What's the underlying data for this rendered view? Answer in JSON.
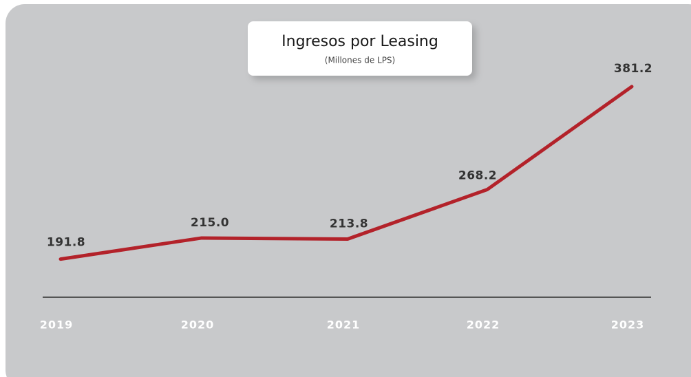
{
  "chart_data": {
    "type": "line",
    "title": "Ingresos por Leasing",
    "subtitle": "(Millones de LPS)",
    "categories": [
      "2019",
      "2020",
      "2021",
      "2022",
      "2023"
    ],
    "values": [
      191.8,
      215.0,
      213.8,
      268.2,
      381.2
    ],
    "value_labels": [
      "191.8",
      "215.0",
      "213.8",
      "268.2",
      "381.2"
    ],
    "color": "#b3222a",
    "ylim": [
      150,
      400
    ]
  }
}
